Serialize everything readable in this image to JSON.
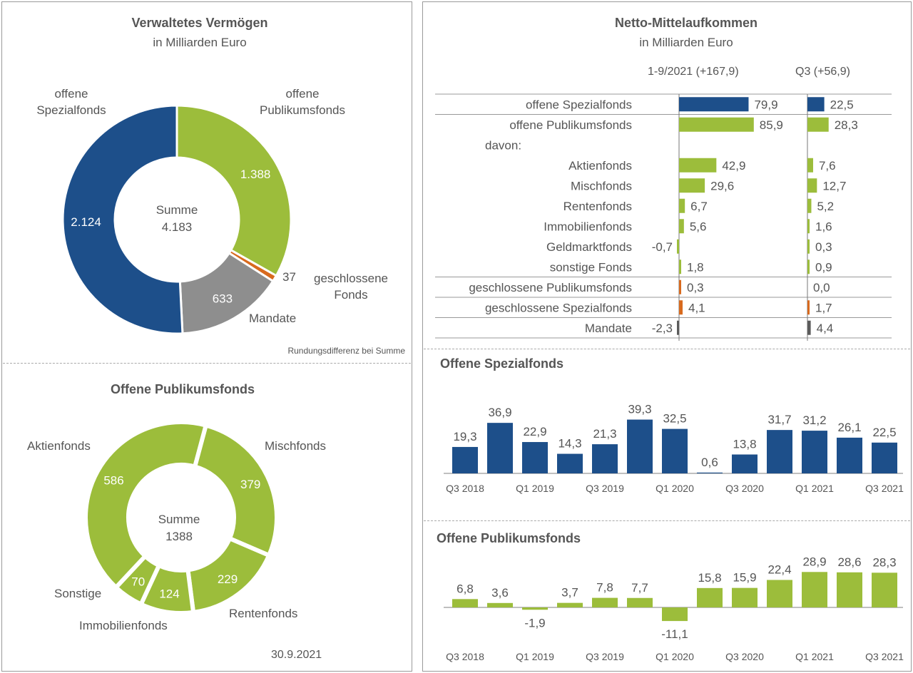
{
  "colors": {
    "blue": "#1d4f8a",
    "green": "#9cbd3b",
    "gray": "#8e8e8e",
    "orange": "#d86a1e",
    "dark": "#5b5b5b"
  },
  "chart_data": [
    {
      "type": "pie",
      "title": "Verwaltetes Vermögen",
      "subtitle": "in Milliarden Euro",
      "center_label": "Summe",
      "center_value": "4.183",
      "slices": [
        {
          "label": "offene Publikumsfonds",
          "value": 1388,
          "display": "1.388"
        },
        {
          "label": "geschlossene Fonds",
          "value": 37,
          "display": "37"
        },
        {
          "label": "Mandate",
          "value": 633,
          "display": "633"
        },
        {
          "label": "offene Spezialfonds",
          "value": 2124,
          "display": "2.124"
        }
      ],
      "note": "Rundungsdifferenz bei Summe"
    },
    {
      "type": "pie",
      "title": "Offene Publikumsfonds",
      "center_label": "Summe",
      "center_value": "1388",
      "slices": [
        {
          "label": "Mischfonds",
          "value": 379,
          "display": "379"
        },
        {
          "label": "Rentenfonds",
          "value": 229,
          "display": "229"
        },
        {
          "label": "Immobilienfonds",
          "value": 124,
          "display": "124"
        },
        {
          "label": "Sonstige",
          "value": 70,
          "display": "70"
        },
        {
          "label": "Aktienfonds",
          "value": 586,
          "display": "586"
        }
      ],
      "date": "30.9.2021"
    },
    {
      "type": "bar",
      "title": "Netto-Mittelaufkommen",
      "subtitle": "in Milliarden Euro",
      "col1_header": "1-9/2021 (+167,9)",
      "col2_header": "Q3 (+56,9)",
      "rows": [
        {
          "label": "offene Spezialfonds",
          "v1": 79.9,
          "d1": "79,9",
          "v2": 22.5,
          "d2": "22,5",
          "color": "blue"
        },
        {
          "label": "offene Publikumsfonds",
          "v1": 85.9,
          "d1": "85,9",
          "v2": 28.3,
          "d2": "28,3",
          "color": "green"
        },
        {
          "label": "davon:",
          "v1": null,
          "d1": "",
          "v2": null,
          "d2": "",
          "color": ""
        },
        {
          "label": "Aktienfonds",
          "v1": 42.9,
          "d1": "42,9",
          "v2": 7.6,
          "d2": "7,6",
          "color": "green"
        },
        {
          "label": "Mischfonds",
          "v1": 29.6,
          "d1": "29,6",
          "v2": 12.7,
          "d2": "12,7",
          "color": "green"
        },
        {
          "label": "Rentenfonds",
          "v1": 6.7,
          "d1": "6,7",
          "v2": 5.2,
          "d2": "5,2",
          "color": "green"
        },
        {
          "label": "Immobilienfonds",
          "v1": 5.6,
          "d1": "5,6",
          "v2": 1.6,
          "d2": "1,6",
          "color": "green"
        },
        {
          "label": "Geldmarktfonds",
          "v1": -0.7,
          "d1": "-0,7",
          "v2": 0.3,
          "d2": "0,3",
          "color": "green"
        },
        {
          "label": "sonstige Fonds",
          "v1": 1.8,
          "d1": "1,8",
          "v2": 0.9,
          "d2": "0,9",
          "color": "green"
        },
        {
          "label": "geschlossene Publikumsfonds",
          "v1": 0.3,
          "d1": "0,3",
          "v2": 0.0,
          "d2": "0,0",
          "color": "orange"
        },
        {
          "label": "geschlossene Spezialfonds",
          "v1": 4.1,
          "d1": "4,1",
          "v2": 1.7,
          "d2": "1,7",
          "color": "orange"
        },
        {
          "label": "Mandate",
          "v1": -2.3,
          "d1": "-2,3",
          "v2": 4.4,
          "d2": "4,4",
          "color": "dark"
        }
      ]
    },
    {
      "type": "bar",
      "title": "Offene Spezialfonds",
      "values": [
        19.3,
        36.9,
        22.9,
        14.3,
        21.3,
        39.3,
        32.5,
        0.6,
        13.8,
        31.7,
        31.2,
        26.1,
        22.5
      ],
      "labels": [
        "19,3",
        "36,9",
        "22,9",
        "14,3",
        "21,3",
        "39,3",
        "32,5",
        "0,6",
        "13,8",
        "31,7",
        "31,2",
        "26,1",
        "22,5"
      ],
      "xticks": [
        "Q3 2018",
        "Q1 2019",
        "Q3 2019",
        "Q1 2020",
        "Q3 2020",
        "Q1 2021",
        "Q3 2021"
      ]
    },
    {
      "type": "bar",
      "title": "Offene Publikumsfonds",
      "values": [
        6.8,
        3.6,
        -1.9,
        3.7,
        7.8,
        7.7,
        -11.1,
        15.8,
        15.9,
        22.4,
        28.9,
        28.6,
        28.3
      ],
      "labels": [
        "6,8",
        "3,6",
        "-1,9",
        "3,7",
        "7,8",
        "7,7",
        "-11,1",
        "15,8",
        "15,9",
        "22,4",
        "28,9",
        "28,6",
        "28,3"
      ],
      "xticks": [
        "Q3 2018",
        "Q1 2019",
        "Q3 2019",
        "Q1 2020",
        "Q3 2020",
        "Q1 2021",
        "Q3 2021"
      ]
    }
  ]
}
